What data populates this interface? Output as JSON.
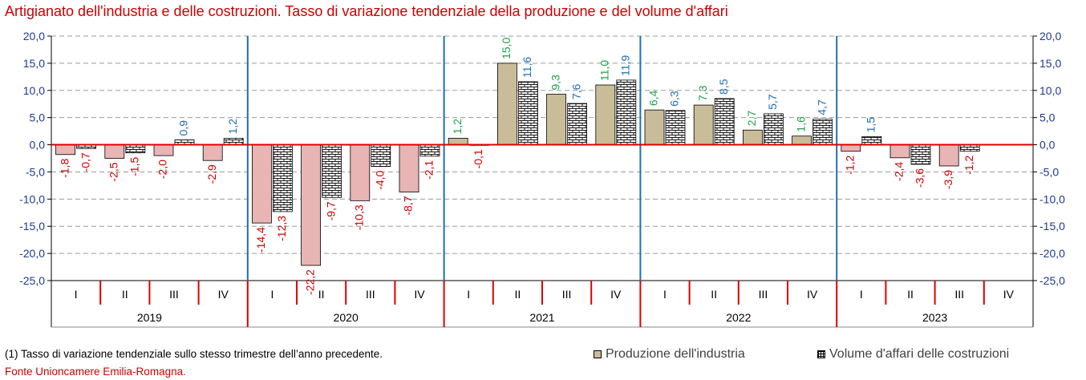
{
  "title": "Artigianato dell'industria e delle costruzioni. Tasso di variazione tendenziale della produzione e del volume d'affari",
  "footnote": "(1) Tasso di variazione tendenziale sullo stesso trimestre dell’anno precedente.",
  "source": "Fonte Unioncamere Emilia-Romagna.",
  "legend": {
    "produzione": "Produzione dell'industria",
    "volume": "Volume d'affari delle costruzioni"
  },
  "colors": {
    "title": "#cc0000",
    "axis_zero_line": "#dd0000",
    "year_separator": "#1f6fb2",
    "produzione_fill": "#c8bd98",
    "produzione_negative_fill": "#e8b4b4",
    "volume_pattern": "brick",
    "label_positive_produzione": "#22a04a",
    "label_positive_volume": "#1f6fb2",
    "label_negative": "#cc0000"
  },
  "chart_data": {
    "type": "bar",
    "years": [
      "2019",
      "2020",
      "2021",
      "2022",
      "2023"
    ],
    "quarters": [
      "I",
      "II",
      "III",
      "IV"
    ],
    "categories": [
      "2019 I",
      "2019 II",
      "2019 III",
      "2019 IV",
      "2020 I",
      "2020 II",
      "2020 III",
      "2020 IV",
      "2021 I",
      "2021 II",
      "2021 III",
      "2021 IV",
      "2022 I",
      "2022 II",
      "2022 III",
      "2022 IV",
      "2023 I",
      "2023 II",
      "2023 III",
      "2023 IV"
    ],
    "series": [
      {
        "name": "Produzione dell'industria",
        "values": [
          -1.8,
          -2.5,
          -2.0,
          -2.9,
          -14.4,
          -22.2,
          -10.3,
          -8.7,
          1.2,
          15.0,
          9.3,
          11.0,
          6.4,
          7.3,
          2.7,
          1.6,
          -1.2,
          -2.4,
          -3.9,
          null
        ],
        "labels": [
          "-1,8",
          "-2,5",
          "-2,0",
          "-2,9",
          "-14,4",
          "-22,2",
          "-10,3",
          "-8,7",
          "1,2",
          "15,0",
          "9,3",
          "11,0",
          "6,4",
          "7,3",
          "2,7",
          "1,6",
          "-1,2",
          "-2,4",
          "-3,9",
          ""
        ]
      },
      {
        "name": "Volume d'affari delle costruzioni",
        "values": [
          -0.7,
          -1.5,
          0.9,
          1.2,
          -12.3,
          -9.7,
          -4.0,
          -2.1,
          -0.1,
          11.6,
          7.6,
          11.9,
          6.3,
          8.5,
          5.7,
          4.7,
          1.5,
          -3.6,
          -1.2,
          null
        ],
        "labels": [
          "-0,7",
          "-1,5",
          "0,9",
          "1,2",
          "-12,3",
          "-9,7",
          "-4,0",
          "-2,1",
          "-0,1",
          "11,6",
          "7,6",
          "11,9",
          "6,3",
          "8,5",
          "5,7",
          "4,7",
          "1,5",
          "-3,6",
          "-1,2",
          ""
        ]
      }
    ],
    "ylim": [
      -25,
      20
    ],
    "yticks": [
      20,
      15,
      10,
      5,
      0,
      -5,
      -10,
      -15,
      -20,
      -25
    ],
    "ytick_labels": [
      "20,0",
      "15,0",
      "10,0",
      "5,0",
      "0,0",
      "-5,0",
      "-10,0",
      "-15,0",
      "-20,0",
      "-25,0"
    ],
    "grid": true,
    "legend_position": "bottom-right"
  }
}
